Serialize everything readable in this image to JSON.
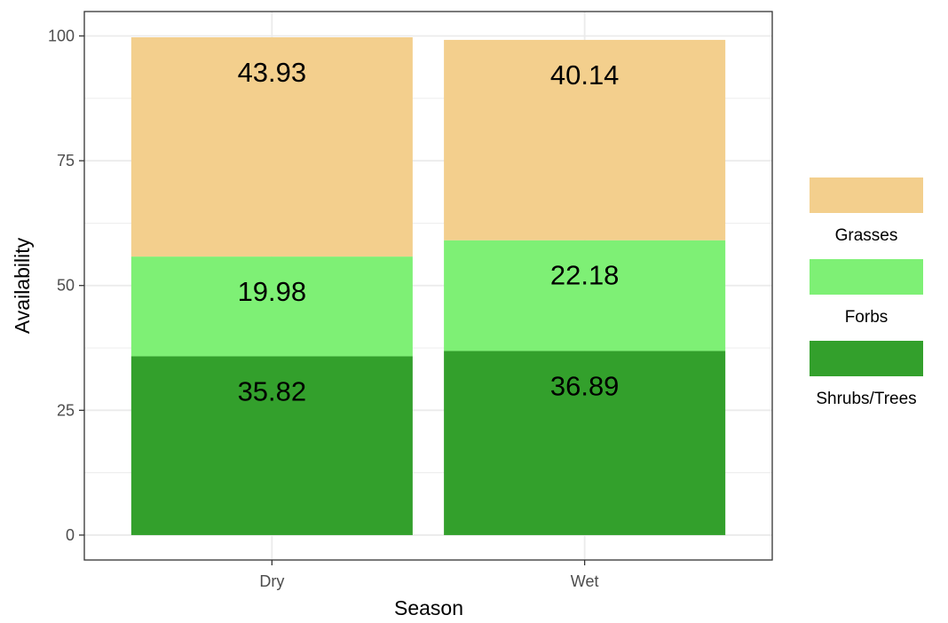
{
  "chart_data": {
    "type": "bar",
    "stacked": true,
    "categories": [
      "Dry",
      "Wet"
    ],
    "series": [
      {
        "name": "Shrubs/Trees",
        "values": [
          35.82,
          36.89
        ],
        "color": "#33a02c"
      },
      {
        "name": "Forbs",
        "values": [
          19.98,
          22.18
        ],
        "color": "#7ef075"
      },
      {
        "name": "Grasses",
        "values": [
          43.93,
          40.14
        ],
        "color": "#f3cf8d"
      }
    ],
    "data_labels": [
      [
        "35.82",
        "36.89"
      ],
      [
        "19.98",
        "22.18"
      ],
      [
        "43.93",
        "40.14"
      ]
    ],
    "xlabel": "Season",
    "ylabel": "Availability",
    "ylim": [
      -4.99,
      104.89
    ],
    "yticks": [
      0,
      25,
      50,
      75,
      100
    ],
    "ytick_labels": [
      "0",
      "25",
      "50",
      "75",
      "100"
    ],
    "grid": true,
    "legend_position": "right",
    "legend_order": [
      "Grasses",
      "Forbs",
      "Shrubs/Trees"
    ]
  }
}
